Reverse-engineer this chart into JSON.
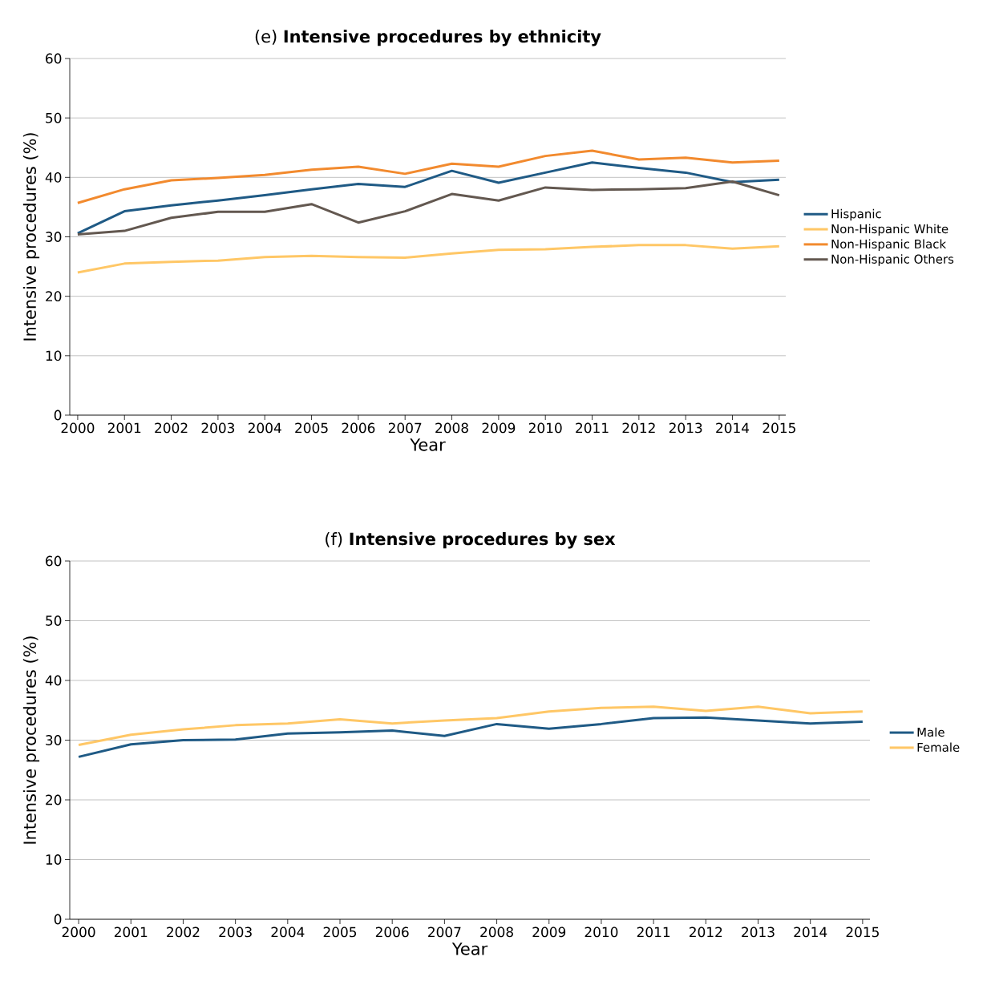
{
  "chart_data": [
    {
      "type": "line",
      "title": "(e) **Intensive procedures by ethnicity**",
      "xlabel": "Year",
      "ylabel": "Intensive procedures (%)",
      "categories": [
        "2000",
        "2001",
        "2002",
        "2003",
        "2004",
        "2005",
        "2006",
        "2007",
        "2008",
        "2009",
        "2010",
        "2011",
        "2012",
        "2013",
        "2014",
        "2015"
      ],
      "ylim": [
        0,
        60
      ],
      "yticks": [
        0,
        10,
        20,
        30,
        40,
        50,
        60
      ],
      "grid": "y",
      "legend": "right",
      "series": [
        {
          "name": "Hispanic",
          "color": "#1f5a85",
          "values": [
            30.6,
            34.3,
            35.3,
            36.1,
            37.0,
            38.0,
            38.9,
            38.4,
            41.1,
            39.1,
            40.8,
            42.5,
            41.6,
            40.8,
            39.2,
            39.6
          ]
        },
        {
          "name": "Non-Hispanic White",
          "color": "#ffc766",
          "values": [
            24.0,
            25.5,
            25.8,
            26.0,
            26.6,
            26.8,
            26.6,
            26.5,
            27.2,
            27.8,
            27.9,
            28.3,
            28.6,
            28.6,
            28.0,
            28.4
          ]
        },
        {
          "name": "Non-Hispanic Black",
          "color": "#f28a2e",
          "values": [
            35.7,
            38.0,
            39.5,
            39.9,
            40.4,
            41.3,
            41.8,
            40.6,
            42.3,
            41.8,
            43.6,
            44.5,
            43.0,
            43.3,
            42.5,
            42.8
          ]
        },
        {
          "name": "Non-Hispanic Others",
          "color": "#635850",
          "values": [
            30.4,
            31.0,
            33.2,
            34.2,
            34.2,
            35.5,
            32.4,
            34.3,
            37.2,
            36.1,
            38.3,
            37.9,
            38.0,
            38.2,
            39.3,
            37.0
          ]
        }
      ]
    },
    {
      "type": "line",
      "title": "(f) **Intensive procedures by sex**",
      "xlabel": "Year",
      "ylabel": "Intensive procedures (%)",
      "categories": [
        "2000",
        "2001",
        "2002",
        "2003",
        "2004",
        "2005",
        "2006",
        "2007",
        "2008",
        "2009",
        "2010",
        "2011",
        "2012",
        "2013",
        "2014",
        "2015"
      ],
      "ylim": [
        0,
        60
      ],
      "yticks": [
        0,
        10,
        20,
        30,
        40,
        50,
        60
      ],
      "grid": "y",
      "legend": "right",
      "series": [
        {
          "name": "Male",
          "color": "#1f5a85",
          "values": [
            27.2,
            29.3,
            30.0,
            30.1,
            31.1,
            31.3,
            31.6,
            30.7,
            32.7,
            31.9,
            32.7,
            33.7,
            33.8,
            33.3,
            32.8,
            33.1
          ]
        },
        {
          "name": "Female",
          "color": "#ffc766",
          "values": [
            29.2,
            30.9,
            31.8,
            32.5,
            32.8,
            33.5,
            32.8,
            33.3,
            33.7,
            34.8,
            35.4,
            35.6,
            34.9,
            35.6,
            34.5,
            34.8
          ]
        }
      ]
    }
  ]
}
